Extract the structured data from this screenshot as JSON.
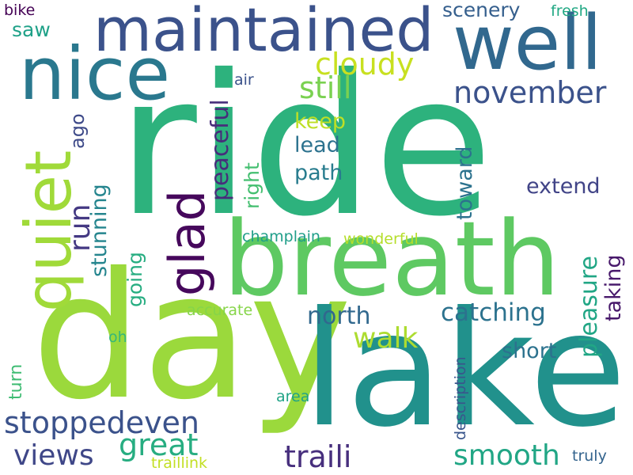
{
  "words": [
    {
      "text": "ride",
      "color": "#2db27d",
      "vertical": false
    },
    {
      "text": "day",
      "color": "#9bd93c",
      "vertical": false
    },
    {
      "text": "lake",
      "color": "#21918c",
      "vertical": false
    },
    {
      "text": "breath",
      "color": "#5ec962",
      "vertical": false
    },
    {
      "text": "nice",
      "color": "#2a788e",
      "vertical": false
    },
    {
      "text": "well",
      "color": "#31688e",
      "vertical": false
    },
    {
      "text": "maintained",
      "color": "#3b528b",
      "vertical": false
    },
    {
      "text": "quiet",
      "color": "#a0da39",
      "vertical": true
    },
    {
      "text": "glad",
      "color": "#46085c",
      "vertical": true
    },
    {
      "text": "cloudy",
      "color": "#c8e020",
      "vertical": false
    },
    {
      "text": "still",
      "color": "#7ad151",
      "vertical": false
    },
    {
      "text": "november",
      "color": "#3b528b",
      "vertical": false
    },
    {
      "text": "peaceful",
      "color": "#472d7b",
      "vertical": true
    },
    {
      "text": "keep",
      "color": "#bddf26",
      "vertical": false
    },
    {
      "text": "lead",
      "color": "#2c728e",
      "vertical": false
    },
    {
      "text": "path",
      "color": "#287c8e",
      "vertical": false
    },
    {
      "text": "right",
      "color": "#44bf70",
      "vertical": true
    },
    {
      "text": "run",
      "color": "#443983",
      "vertical": true
    },
    {
      "text": "ago",
      "color": "#3e4a89",
      "vertical": true
    },
    {
      "text": "stunning",
      "color": "#25858e",
      "vertical": true
    },
    {
      "text": "going",
      "color": "#26ad81",
      "vertical": true
    },
    {
      "text": "extend",
      "color": "#414487",
      "vertical": false
    },
    {
      "text": "toward",
      "color": "#2c728e",
      "vertical": true
    },
    {
      "text": "pleasure",
      "color": "#21a685",
      "vertical": true
    },
    {
      "text": "taking",
      "color": "#48196b",
      "vertical": true
    },
    {
      "text": "champlain",
      "color": "#1f9e89",
      "vertical": false
    },
    {
      "text": "wonderful",
      "color": "#b5de2b",
      "vertical": false
    },
    {
      "text": "north",
      "color": "#31688e",
      "vertical": false
    },
    {
      "text": "catching",
      "color": "#2c728e",
      "vertical": false
    },
    {
      "text": "accurate",
      "color": "#86d549",
      "vertical": false
    },
    {
      "text": "walk",
      "color": "#addc30",
      "vertical": false
    },
    {
      "text": "short",
      "color": "#2c728e",
      "vertical": false
    },
    {
      "text": "oh",
      "color": "#35b779",
      "vertical": false
    },
    {
      "text": "turn",
      "color": "#3fbc73",
      "vertical": true
    },
    {
      "text": "description",
      "color": "#39568c",
      "vertical": true
    },
    {
      "text": "area",
      "color": "#20a386",
      "vertical": false
    },
    {
      "text": "stoppedeven",
      "color": "#3b528b",
      "vertical": false
    },
    {
      "text": "great",
      "color": "#27ad81",
      "vertical": false
    },
    {
      "text": "views",
      "color": "#3f4788",
      "vertical": false
    },
    {
      "text": "traili",
      "color": "#472f7d",
      "vertical": false
    },
    {
      "text": "smooth",
      "color": "#21a685",
      "vertical": false
    },
    {
      "text": "traillink",
      "color": "#c2df23",
      "vertical": false
    },
    {
      "text": "truly",
      "color": "#33638d",
      "vertical": false
    },
    {
      "text": "bike",
      "color": "#440154",
      "vertical": false
    },
    {
      "text": "saw",
      "color": "#1fa188",
      "vertical": false
    },
    {
      "text": "scenery",
      "color": "#355f8d",
      "vertical": false
    },
    {
      "text": "fresh",
      "color": "#22a884",
      "vertical": false
    },
    {
      "text": "air",
      "color": "#3b528b",
      "vertical": false
    }
  ]
}
